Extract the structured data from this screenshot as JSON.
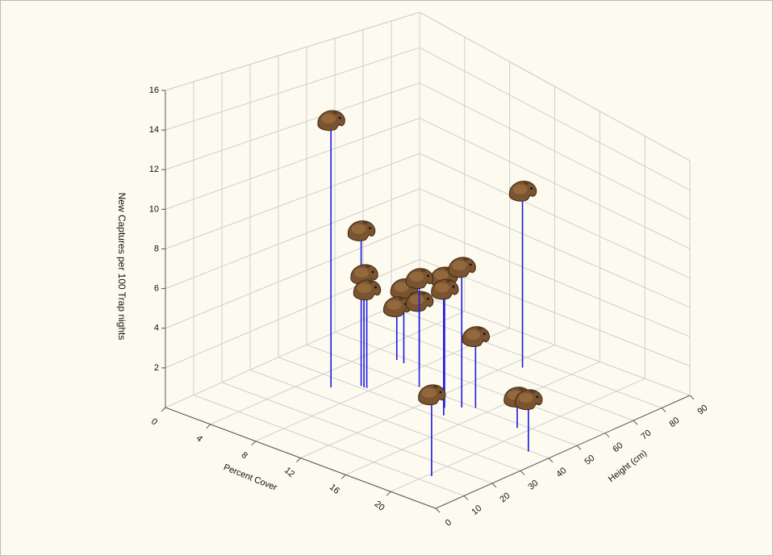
{
  "chart_data": {
    "type": "scatter3d",
    "x_label": "Percent Cover",
    "z_label": "Height (cm)",
    "y_label": "New Captures per 100 Trap nights",
    "x": [
      5.8,
      12.9,
      7.1,
      7.4,
      7.6,
      6.7,
      14.3,
      14.3,
      13.5,
      6,
      8,
      15,
      20.3,
      19.2,
      22.3,
      10
    ],
    "z": [
      35.5,
      75,
      41,
      40.8,
      41,
      57.7,
      41.5,
      47.9,
      45,
      58,
      58,
      50,
      13.3,
      48,
      39.6,
      50
    ],
    "values": [
      13.8,
      10,
      7.9,
      5.6,
      4.8,
      3.6,
      7.2,
      7.4,
      6.1,
      2.4,
      3.2,
      3.5,
      3.8,
      1.2,
      2.4,
      5.5
    ],
    "color": "#1a1ae0",
    "xlim": [
      0,
      24
    ],
    "xticks": [
      0,
      4,
      8,
      12,
      16,
      20
    ],
    "zlim": [
      0,
      90
    ],
    "zticks": [
      0,
      10,
      20,
      30,
      40,
      50,
      60,
      70,
      80,
      90
    ],
    "ylim": [
      0,
      16
    ],
    "yticks": [
      2,
      4,
      6,
      8,
      10,
      12,
      14,
      16
    ],
    "grid": true
  }
}
